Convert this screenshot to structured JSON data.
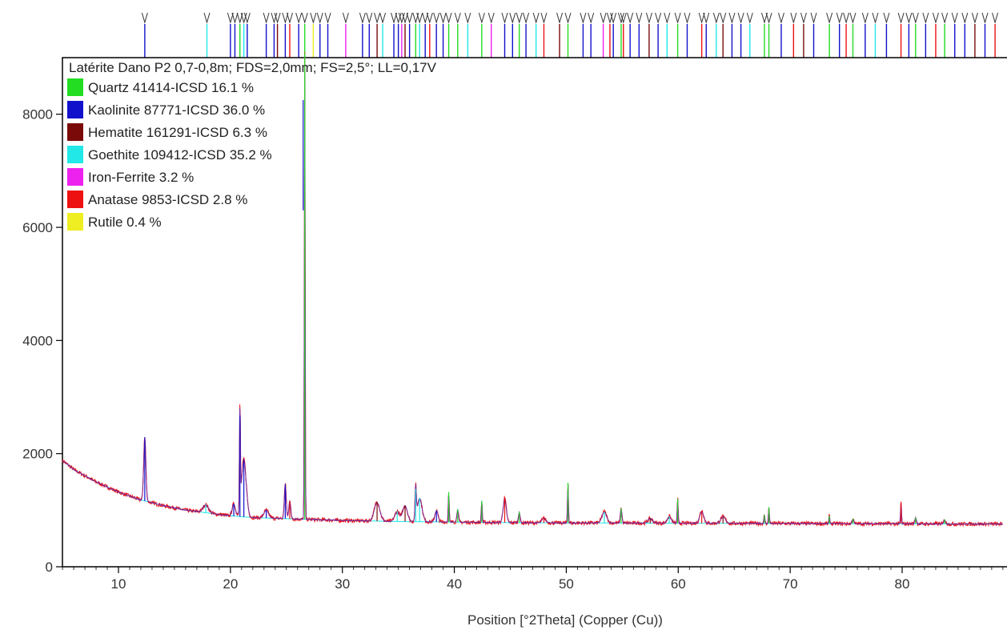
{
  "chart_data": {
    "type": "line",
    "title": "Latérite Dano P2 0,7-0,8m; FDS=2,0mm; FS=2,5°; LL=0,17V",
    "xlabel": "Position [°2Theta] (Copper (Cu))",
    "ylabel": "",
    "xlim": [
      5,
      89
    ],
    "ylim": [
      0,
      9000
    ],
    "xticks": [
      10,
      20,
      30,
      40,
      50,
      60,
      70,
      80
    ],
    "yticks": [
      0,
      2000,
      4000,
      6000,
      8000
    ],
    "legend": [
      {
        "name": "Quartz 41414-ICSD 16.1 %",
        "color": "#22dd22"
      },
      {
        "name": "Kaolinite 87771-ICSD 36.0 %",
        "color": "#1111cc"
      },
      {
        "name": "Hematite 161291-ICSD 6.3 %",
        "color": "#7a0a0a"
      },
      {
        "name": "Goethite 109412-ICSD 35.2 %",
        "color": "#22e8e8"
      },
      {
        "name": "Iron-Ferrite 3.2 %",
        "color": "#ee22ee"
      },
      {
        "name": "Anatase 9853-ICSD 2.8 %",
        "color": "#ee1111"
      },
      {
        "name": "Rutile 0.4 %",
        "color": "#eeee22"
      }
    ],
    "legend_position": "top-left",
    "background": {
      "points": [
        [
          5,
          1880
        ],
        [
          6,
          1720
        ],
        [
          8,
          1500
        ],
        [
          10,
          1320
        ],
        [
          12,
          1180
        ],
        [
          14,
          1080
        ],
        [
          16,
          1000
        ],
        [
          18,
          950
        ],
        [
          20,
          900
        ],
        [
          22,
          870
        ],
        [
          25,
          850
        ],
        [
          28,
          830
        ],
        [
          30,
          820
        ],
        [
          35,
          800
        ],
        [
          40,
          790
        ],
        [
          45,
          780
        ],
        [
          50,
          775
        ],
        [
          60,
          770
        ],
        [
          70,
          765
        ],
        [
          80,
          760
        ],
        [
          89,
          755
        ]
      ]
    },
    "peaks": [
      {
        "x": 12.35,
        "height": 1130,
        "width": 0.14,
        "color": "#1111cc"
      },
      {
        "x": 17.8,
        "height": 140,
        "width": 0.35,
        "color": "#22e8e8"
      },
      {
        "x": 20.3,
        "height": 220,
        "width": 0.2,
        "color": "#1111cc"
      },
      {
        "x": 20.85,
        "height": 1790,
        "width": 0.06,
        "color": "#1111cc"
      },
      {
        "x": 21.2,
        "height": 1020,
        "width": 0.3,
        "color": "#1111cc"
      },
      {
        "x": 23.2,
        "height": 140,
        "width": 0.3,
        "color": "#1111cc"
      },
      {
        "x": 24.9,
        "height": 610,
        "width": 0.12,
        "color": "#1111cc"
      },
      {
        "x": 25.3,
        "height": 320,
        "width": 0.12,
        "color": "#ee1111"
      },
      {
        "x": 26.64,
        "height": 8240,
        "width": 0.05,
        "color": "#22dd22"
      },
      {
        "x": 33.1,
        "height": 340,
        "width": 0.35,
        "color": "#7a0a0a"
      },
      {
        "x": 34.9,
        "height": 180,
        "width": 0.3,
        "color": "#22e8e8"
      },
      {
        "x": 35.6,
        "height": 280,
        "width": 0.3,
        "color": "#7a0a0a"
      },
      {
        "x": 36.55,
        "height": 580,
        "width": 0.08,
        "color": "#22e8e8"
      },
      {
        "x": 36.9,
        "height": 420,
        "width": 0.3,
        "color": "#22e8e8"
      },
      {
        "x": 38.4,
        "height": 200,
        "width": 0.2,
        "color": "#1111cc"
      },
      {
        "x": 39.5,
        "height": 530,
        "width": 0.06,
        "color": "#22dd22"
      },
      {
        "x": 40.3,
        "height": 230,
        "width": 0.1,
        "color": "#22dd22"
      },
      {
        "x": 42.45,
        "height": 380,
        "width": 0.06,
        "color": "#22dd22"
      },
      {
        "x": 44.5,
        "height": 430,
        "width": 0.2,
        "color": "#ee1111"
      },
      {
        "x": 45.8,
        "height": 190,
        "width": 0.1,
        "color": "#22dd22"
      },
      {
        "x": 48.0,
        "height": 80,
        "width": 0.25,
        "color": "#ee1111"
      },
      {
        "x": 50.15,
        "height": 710,
        "width": 0.06,
        "color": "#22dd22"
      },
      {
        "x": 53.4,
        "height": 200,
        "width": 0.3,
        "color": "#22e8e8"
      },
      {
        "x": 54.9,
        "height": 260,
        "width": 0.1,
        "color": "#22dd22"
      },
      {
        "x": 57.5,
        "height": 80,
        "width": 0.3,
        "color": "#7a0a0a"
      },
      {
        "x": 59.2,
        "height": 120,
        "width": 0.25,
        "color": "#22e8e8"
      },
      {
        "x": 59.95,
        "height": 430,
        "width": 0.06,
        "color": "#22dd22"
      },
      {
        "x": 62.1,
        "height": 220,
        "width": 0.25,
        "color": "#ee1111"
      },
      {
        "x": 64.0,
        "height": 120,
        "width": 0.3,
        "color": "#7a0a0a"
      },
      {
        "x": 67.7,
        "height": 150,
        "width": 0.06,
        "color": "#22dd22"
      },
      {
        "x": 68.1,
        "height": 290,
        "width": 0.06,
        "color": "#22dd22"
      },
      {
        "x": 73.5,
        "height": 140,
        "width": 0.06,
        "color": "#22dd22"
      },
      {
        "x": 75.6,
        "height": 90,
        "width": 0.1,
        "color": "#22dd22"
      },
      {
        "x": 79.9,
        "height": 390,
        "width": 0.06,
        "color": "#ee1111"
      },
      {
        "x": 81.2,
        "height": 110,
        "width": 0.1,
        "color": "#22dd22"
      },
      {
        "x": 83.8,
        "height": 80,
        "width": 0.1,
        "color": "#22dd22"
      }
    ],
    "reference_markers": [
      {
        "x": 12.35,
        "color": "#1111cc"
      },
      {
        "x": 17.9,
        "color": "#22e8e8"
      },
      {
        "x": 20.0,
        "color": "#1111cc"
      },
      {
        "x": 20.4,
        "color": "#1111cc"
      },
      {
        "x": 20.85,
        "color": "#22dd22"
      },
      {
        "x": 21.2,
        "color": "#22e8e8"
      },
      {
        "x": 21.5,
        "color": "#1111cc"
      },
      {
        "x": 23.2,
        "color": "#1111cc"
      },
      {
        "x": 23.9,
        "color": "#1111cc"
      },
      {
        "x": 24.2,
        "color": "#7a0a0a"
      },
      {
        "x": 24.9,
        "color": "#1111cc"
      },
      {
        "x": 25.3,
        "color": "#ee1111"
      },
      {
        "x": 26.1,
        "color": "#1111cc"
      },
      {
        "x": 26.64,
        "color": "#22dd22"
      },
      {
        "x": 27.4,
        "color": "#eeee22"
      },
      {
        "x": 28.0,
        "color": "#1111cc"
      },
      {
        "x": 28.7,
        "color": "#1111cc"
      },
      {
        "x": 30.3,
        "color": "#ee22ee"
      },
      {
        "x": 31.8,
        "color": "#1111cc"
      },
      {
        "x": 32.4,
        "color": "#1111cc"
      },
      {
        "x": 33.1,
        "color": "#7a0a0a"
      },
      {
        "x": 33.6,
        "color": "#22e8e8"
      },
      {
        "x": 34.6,
        "color": "#1111cc"
      },
      {
        "x": 35.0,
        "color": "#1111cc"
      },
      {
        "x": 35.3,
        "color": "#ee22ee"
      },
      {
        "x": 35.6,
        "color": "#7a0a0a"
      },
      {
        "x": 36.0,
        "color": "#1111cc"
      },
      {
        "x": 36.55,
        "color": "#22dd22"
      },
      {
        "x": 36.9,
        "color": "#22e8e8"
      },
      {
        "x": 37.4,
        "color": "#1111cc"
      },
      {
        "x": 37.8,
        "color": "#ee1111"
      },
      {
        "x": 38.4,
        "color": "#1111cc"
      },
      {
        "x": 39.0,
        "color": "#1111cc"
      },
      {
        "x": 39.5,
        "color": "#22dd22"
      },
      {
        "x": 40.3,
        "color": "#22dd22"
      },
      {
        "x": 41.2,
        "color": "#22e8e8"
      },
      {
        "x": 42.45,
        "color": "#22dd22"
      },
      {
        "x": 43.3,
        "color": "#ee22ee"
      },
      {
        "x": 44.5,
        "color": "#1111cc"
      },
      {
        "x": 45.2,
        "color": "#1111cc"
      },
      {
        "x": 45.8,
        "color": "#22dd22"
      },
      {
        "x": 46.4,
        "color": "#1111cc"
      },
      {
        "x": 47.3,
        "color": "#22e8e8"
      },
      {
        "x": 48.0,
        "color": "#ee1111"
      },
      {
        "x": 49.4,
        "color": "#7a0a0a"
      },
      {
        "x": 50.15,
        "color": "#22dd22"
      },
      {
        "x": 51.5,
        "color": "#1111cc"
      },
      {
        "x": 52.2,
        "color": "#1111cc"
      },
      {
        "x": 53.3,
        "color": "#ee22ee"
      },
      {
        "x": 53.9,
        "color": "#ee1111"
      },
      {
        "x": 54.2,
        "color": "#1111cc"
      },
      {
        "x": 54.9,
        "color": "#22dd22"
      },
      {
        "x": 55.1,
        "color": "#ee1111"
      },
      {
        "x": 55.7,
        "color": "#1111cc"
      },
      {
        "x": 56.5,
        "color": "#1111cc"
      },
      {
        "x": 57.4,
        "color": "#7a0a0a"
      },
      {
        "x": 58.2,
        "color": "#1111cc"
      },
      {
        "x": 59.0,
        "color": "#22e8e8"
      },
      {
        "x": 59.95,
        "color": "#22dd22"
      },
      {
        "x": 60.8,
        "color": "#1111cc"
      },
      {
        "x": 62.1,
        "color": "#ee1111"
      },
      {
        "x": 62.5,
        "color": "#1111cc"
      },
      {
        "x": 63.4,
        "color": "#22e8e8"
      },
      {
        "x": 64.0,
        "color": "#7a0a0a"
      },
      {
        "x": 64.8,
        "color": "#1111cc"
      },
      {
        "x": 65.6,
        "color": "#1111cc"
      },
      {
        "x": 66.4,
        "color": "#22e8e8"
      },
      {
        "x": 67.7,
        "color": "#22dd22"
      },
      {
        "x": 68.1,
        "color": "#22dd22"
      },
      {
        "x": 69.2,
        "color": "#1111cc"
      },
      {
        "x": 70.3,
        "color": "#ee1111"
      },
      {
        "x": 71.2,
        "color": "#7a0a0a"
      },
      {
        "x": 72.1,
        "color": "#1111cc"
      },
      {
        "x": 73.5,
        "color": "#22dd22"
      },
      {
        "x": 74.4,
        "color": "#1111cc"
      },
      {
        "x": 75.0,
        "color": "#ee1111"
      },
      {
        "x": 75.6,
        "color": "#22dd22"
      },
      {
        "x": 76.7,
        "color": "#1111cc"
      },
      {
        "x": 77.6,
        "color": "#22e8e8"
      },
      {
        "x": 78.6,
        "color": "#1111cc"
      },
      {
        "x": 79.9,
        "color": "#ee1111"
      },
      {
        "x": 80.6,
        "color": "#1111cc"
      },
      {
        "x": 81.2,
        "color": "#22dd22"
      },
      {
        "x": 82.1,
        "color": "#1111cc"
      },
      {
        "x": 83.0,
        "color": "#ee1111"
      },
      {
        "x": 83.8,
        "color": "#22dd22"
      },
      {
        "x": 84.7,
        "color": "#1111cc"
      },
      {
        "x": 85.6,
        "color": "#1111cc"
      },
      {
        "x": 86.5,
        "color": "#7a0a0a"
      },
      {
        "x": 87.4,
        "color": "#1111cc"
      },
      {
        "x": 88.3,
        "color": "#ee1111"
      }
    ]
  }
}
